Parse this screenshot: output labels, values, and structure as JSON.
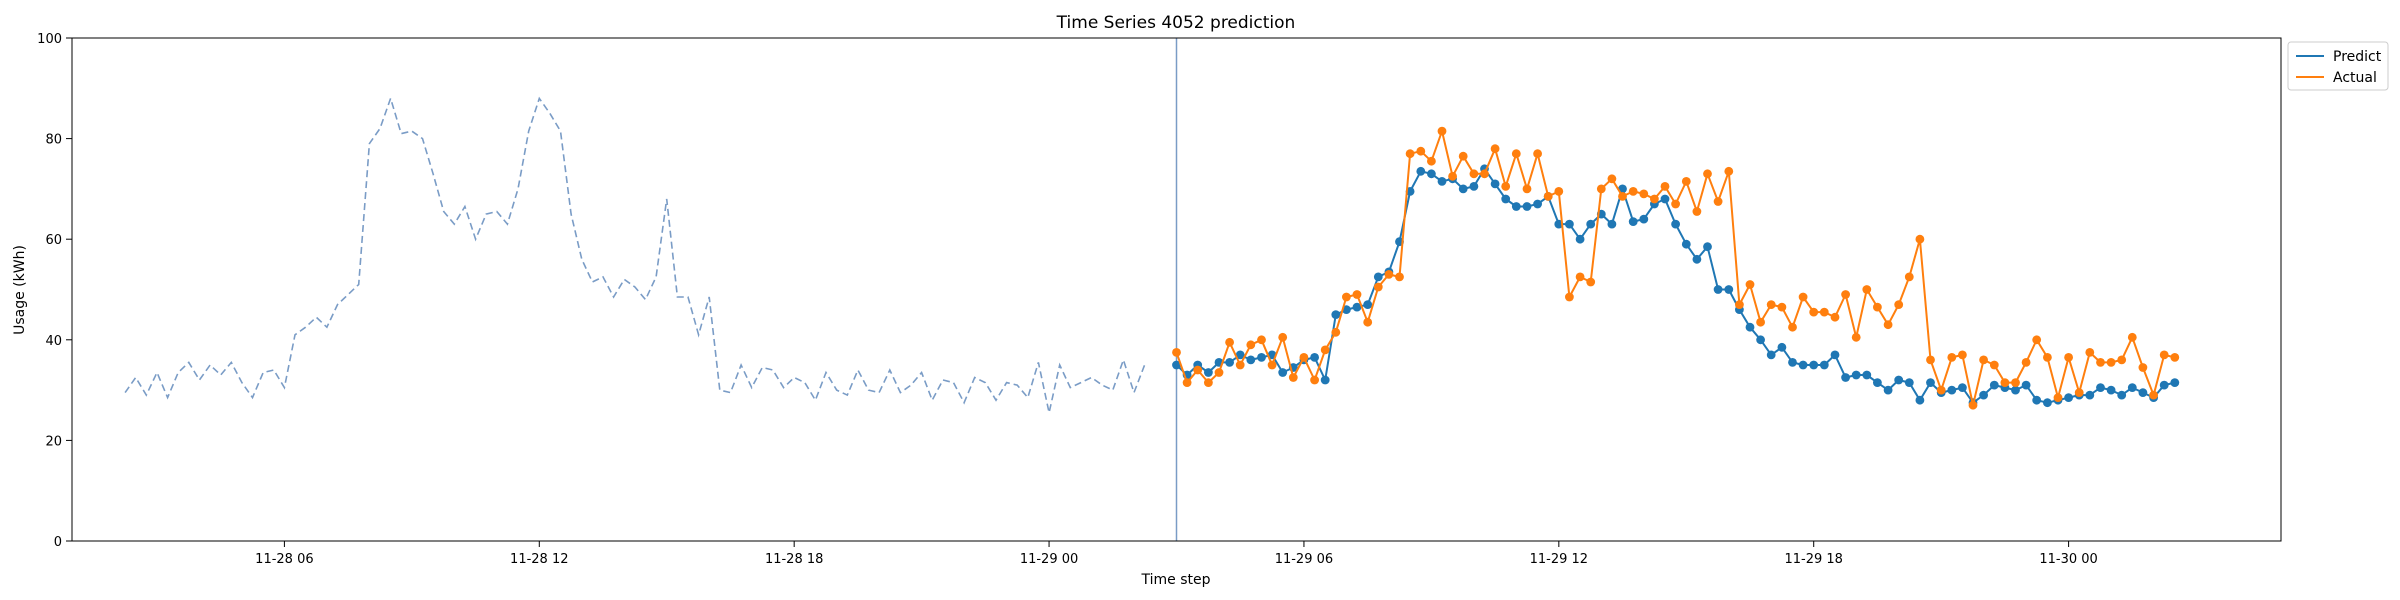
{
  "chart_data": {
    "type": "line",
    "title": "Time Series 4052 prediction",
    "xlabel": "Time step",
    "ylabel": "Usage (kWh)",
    "ylim": [
      0,
      100
    ],
    "yticks": [
      0,
      20,
      40,
      60,
      80,
      100
    ],
    "xlim": [
      "2024-11-28T01:00",
      "2024-11-30T05:00"
    ],
    "xticks": [
      {
        "value": "2024-11-28T06:00",
        "label": "11-28 06"
      },
      {
        "value": "2024-11-28T12:00",
        "label": "11-28 12"
      },
      {
        "value": "2024-11-28T18:00",
        "label": "11-28 18"
      },
      {
        "value": "2024-11-29T00:00",
        "label": "11-29 00"
      },
      {
        "value": "2024-11-29T06:00",
        "label": "11-29 06"
      },
      {
        "value": "2024-11-29T12:00",
        "label": "11-29 12"
      },
      {
        "value": "2024-11-29T18:00",
        "label": "11-29 18"
      },
      {
        "value": "2024-11-30T00:00",
        "label": "11-30 00"
      }
    ],
    "grid": false,
    "legend_position": "outside-top-right",
    "forecast_start": "2024-11-29T03:00",
    "history": {
      "color": "#7a9cc6",
      "style": "dashed",
      "x_start": "2024-11-28T02:15",
      "interval_minutes": 15,
      "values": [
        29.5,
        32.5,
        29,
        33.5,
        28.5,
        33.5,
        35.5,
        32,
        35,
        33,
        35.5,
        31.5,
        28.5,
        33.5,
        34,
        30.5,
        41,
        42.5,
        44.5,
        42.5,
        47,
        49,
        51,
        79,
        82,
        88,
        81,
        81.5,
        80,
        73,
        65.5,
        63,
        66.5,
        60,
        65,
        65.5,
        63,
        70,
        81.5,
        88,
        85,
        81.5,
        65,
        56,
        51.5,
        52.5,
        48.5,
        52,
        50.5,
        48,
        52.5,
        68,
        48.5,
        48.5,
        41,
        48.5,
        30,
        29.5,
        35,
        30.5,
        34.5,
        34,
        30.5,
        32.5,
        31.5,
        28,
        33.5,
        30,
        29,
        34,
        30,
        29.5,
        34,
        29.5,
        31,
        33.5,
        28,
        32,
        31.5,
        27.5,
        32.5,
        31.5,
        28,
        31.5,
        31,
        28.5,
        35.5,
        25.5,
        35,
        30.5,
        31.5,
        32.5,
        31,
        30,
        36,
        29.5,
        35
      ]
    },
    "series": [
      {
        "name": "Predict",
        "color": "#1f77b4",
        "x_start": "2024-11-29T03:00",
        "interval_minutes": 15,
        "values": [
          35,
          33,
          35,
          33.5,
          35.5,
          35.5,
          37,
          36,
          36.5,
          37,
          33.5,
          34.5,
          36,
          36.5,
          32,
          45,
          46,
          46.5,
          47,
          52.5,
          53.5,
          59.5,
          69.5,
          73.5,
          73,
          71.5,
          72,
          70,
          70.5,
          74,
          71,
          68,
          66.5,
          66.5,
          67,
          68.5,
          63,
          63,
          60,
          63,
          65,
          63,
          70,
          63.5,
          64,
          67,
          68,
          63,
          59,
          56,
          58.5,
          50,
          50,
          46,
          42.5,
          40,
          37,
          38.5,
          35.5,
          35,
          35,
          35,
          37,
          32.5,
          33,
          33,
          31.5,
          30,
          32,
          31.5,
          28,
          31.5,
          29.5,
          30,
          30.5,
          27.5,
          29,
          31,
          30.5,
          30,
          31,
          28,
          27.5,
          28,
          28.5,
          29,
          29,
          30.5,
          30,
          29,
          30.5,
          29.5,
          28.5,
          31,
          31.5
        ]
      },
      {
        "name": "Actual",
        "color": "#ff7f0e",
        "x_start": "2024-11-29T03:00",
        "interval_minutes": 15,
        "values": [
          37.5,
          31.5,
          34,
          31.5,
          33.5,
          39.5,
          35,
          39,
          40,
          35,
          40.5,
          32.5,
          36.5,
          32,
          38,
          41.5,
          48.5,
          49,
          43.5,
          50.5,
          53,
          52.5,
          77,
          77.5,
          75.5,
          81.5,
          72.5,
          76.5,
          73,
          73,
          78,
          70.5,
          77,
          70,
          77,
          68.5,
          69.5,
          48.5,
          52.5,
          51.5,
          70,
          72,
          68.5,
          69.5,
          69,
          68,
          70.5,
          67,
          71.5,
          65.5,
          73,
          67.5,
          73.5,
          47,
          51,
          43.5,
          47,
          46.5,
          42.5,
          48.5,
          45.5,
          45.5,
          44.5,
          49,
          40.5,
          50,
          46.5,
          43,
          47,
          52.5,
          60,
          36,
          30,
          36.5,
          37,
          27,
          36,
          35,
          31.5,
          31.5,
          35.5,
          40,
          36.5,
          28.5,
          36.5,
          29.5,
          37.5,
          35.5,
          35.5,
          36,
          40.5,
          34.5,
          29,
          37,
          36.5
        ]
      }
    ]
  }
}
